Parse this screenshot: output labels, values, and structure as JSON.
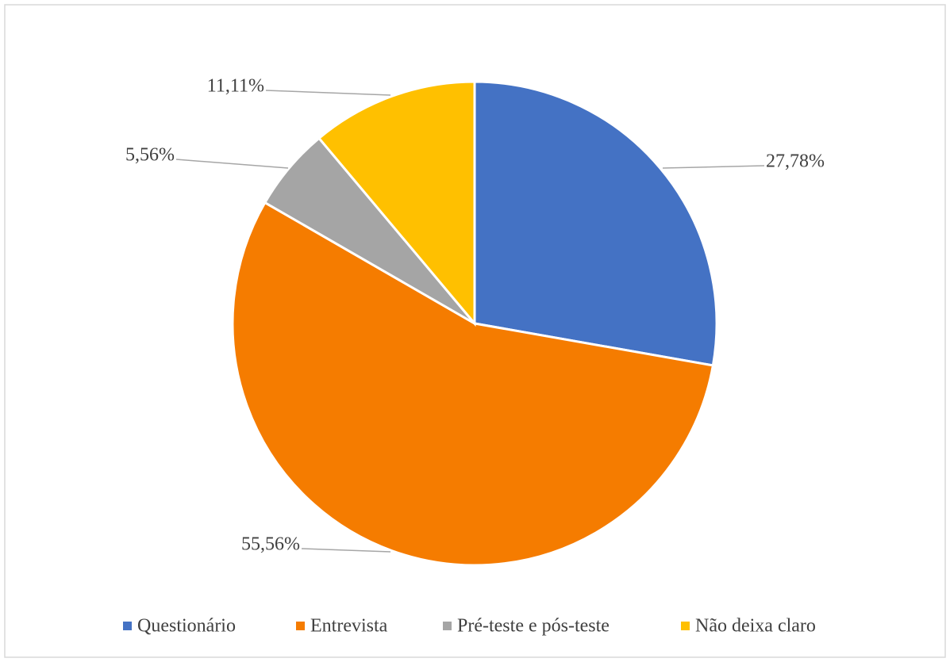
{
  "chart_data": {
    "type": "pie",
    "categories": [
      "Questionário",
      "Entrevista",
      "Pré-teste e pós-teste",
      "Não deixa claro"
    ],
    "values": [
      27.78,
      55.56,
      5.56,
      11.11
    ],
    "value_labels": [
      "27,78%",
      "55,56%",
      "5,56%",
      "11,11%"
    ],
    "colors": [
      "#4472c4",
      "#f57c00",
      "#a5a5a5",
      "#ffc000"
    ],
    "legend": "bottom"
  }
}
